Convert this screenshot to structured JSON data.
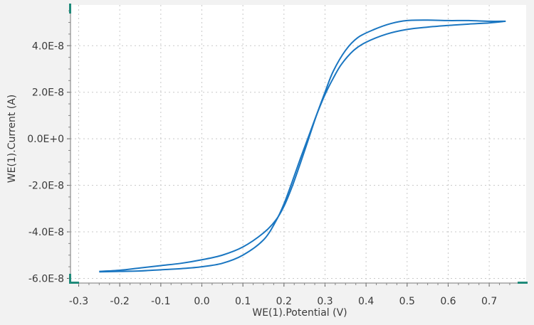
{
  "chart_data": {
    "type": "line",
    "title": "",
    "xlabel": "WE(1).Potential (V)",
    "ylabel": "WE(1).Current (A)",
    "xlim": [
      -0.32,
      0.79
    ],
    "ylim": [
      -6.2e-08,
      5.75e-08
    ],
    "x_ticks": [
      -0.3,
      -0.2,
      -0.1,
      0.0,
      0.1,
      0.2,
      0.3,
      0.4,
      0.5,
      0.6,
      0.7
    ],
    "x_tick_labels": [
      "-0.3",
      "-0.2",
      "-0.1",
      "0.0",
      "0.1",
      "0.2",
      "0.3",
      "0.4",
      "0.5",
      "0.6",
      "0.7"
    ],
    "y_ticks": [
      -6e-08,
      -4e-08,
      -2e-08,
      0,
      2e-08,
      4e-08
    ],
    "y_tick_labels": [
      "-6.0E-8",
      "-4.0E-8",
      "-2.0E-8",
      "0.0E+0",
      "2.0E-8",
      "4.0E-8"
    ],
    "grid": true,
    "line_color": "#1a76c1",
    "series": [
      {
        "x": [
          -0.25,
          -0.2,
          -0.15,
          -0.1,
          -0.05,
          0.0,
          0.05,
          0.1,
          0.15,
          0.18,
          0.2,
          0.22,
          0.24,
          0.26,
          0.28,
          0.3,
          0.32,
          0.35,
          0.38,
          0.42,
          0.46,
          0.5,
          0.55,
          0.6,
          0.65,
          0.7,
          0.74
        ],
        "y": [
          -5.7e-08,
          -5.65e-08,
          -5.55e-08,
          -5.45e-08,
          -5.35e-08,
          -5.2e-08,
          -5e-08,
          -4.65e-08,
          -4.05e-08,
          -3.5e-08,
          -2.9e-08,
          -2.05e-08,
          -1.05e-08,
          0.0,
          1.05e-08,
          2e-08,
          2.9e-08,
          3.8e-08,
          4.35e-08,
          4.7e-08,
          4.95e-08,
          5.08e-08,
          5.1e-08,
          5.08e-08,
          5.08e-08,
          5.05e-08,
          5.05e-08
        ]
      },
      {
        "x": [
          0.74,
          0.7,
          0.65,
          0.6,
          0.55,
          0.5,
          0.45,
          0.4,
          0.37,
          0.34,
          0.32,
          0.3,
          0.28,
          0.26,
          0.24,
          0.22,
          0.2,
          0.18,
          0.15,
          0.1,
          0.05,
          0.0,
          -0.05,
          -0.1,
          -0.15,
          -0.2,
          -0.25
        ],
        "y": [
          5.05e-08,
          4.98e-08,
          4.93e-08,
          4.87e-08,
          4.8e-08,
          4.7e-08,
          4.5e-08,
          4.15e-08,
          3.8e-08,
          3.2e-08,
          2.6e-08,
          1.9e-08,
          1.05e-08,
          1e-09,
          -8.5e-09,
          -1.85e-08,
          -2.8e-08,
          -3.55e-08,
          -4.35e-08,
          -5e-08,
          -5.35e-08,
          -5.5e-08,
          -5.58e-08,
          -5.63e-08,
          -5.68e-08,
          -5.7e-08,
          -5.72e-08
        ]
      }
    ]
  }
}
